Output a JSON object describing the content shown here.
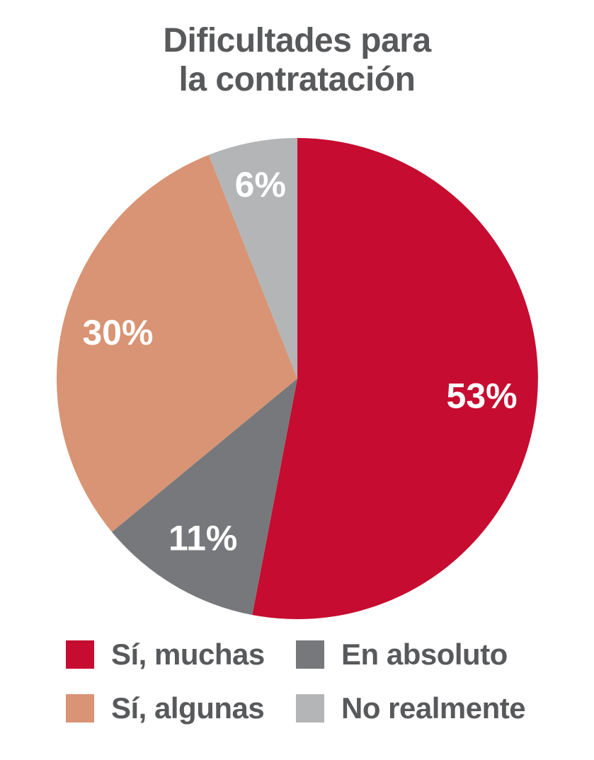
{
  "title": {
    "full": "Dificultades para la contratación",
    "line1": "Dificultades para",
    "line2": "la contratación"
  },
  "colors": {
    "red": "#c60c30",
    "salmon": "#d89474",
    "dark_gray": "#77787b",
    "light_gray": "#b3b5b7",
    "text": "#58595b",
    "slice_label": "#ffffff",
    "background": "#ffffff"
  },
  "chart_data": {
    "type": "pie",
    "title": "Dificultades para la contratación",
    "start_angle_deg": 0,
    "direction": "clockwise",
    "legend_position": "bottom",
    "slices": [
      {
        "label": "Sí, muchas",
        "value": 53,
        "display": "53%",
        "color": "#c60c30"
      },
      {
        "label": "En absoluto",
        "value": 11,
        "display": "11%",
        "color": "#77787b"
      },
      {
        "label": "Sí, algunas",
        "value": 30,
        "display": "30%",
        "color": "#d89474"
      },
      {
        "label": "No realmente",
        "value": 6,
        "display": "6%",
        "color": "#b3b5b7"
      }
    ]
  },
  "legend": {
    "items": [
      {
        "label": "Sí, muchas",
        "color": "#c60c30"
      },
      {
        "label": "En absoluto",
        "color": "#77787b"
      },
      {
        "label": "Sí, algunas",
        "color": "#d89474"
      },
      {
        "label": "No realmente",
        "color": "#b3b5b7"
      }
    ]
  }
}
